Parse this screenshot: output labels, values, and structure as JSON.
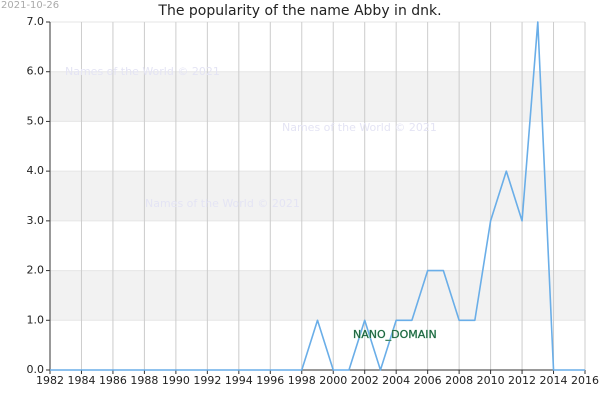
{
  "chart_data": {
    "type": "line",
    "title": "The popularity of the name Abby in dnk.",
    "x": [
      1982,
      1983,
      1984,
      1985,
      1986,
      1987,
      1988,
      1989,
      1990,
      1991,
      1992,
      1993,
      1994,
      1995,
      1996,
      1997,
      1998,
      1999,
      2000,
      2001,
      2002,
      2003,
      2004,
      2005,
      2006,
      2007,
      2008,
      2009,
      2010,
      2011,
      2012,
      2013,
      2014,
      2015,
      2016
    ],
    "values": [
      0,
      0,
      0,
      0,
      0,
      0,
      0,
      0,
      0,
      0,
      0,
      0,
      0,
      0,
      0,
      0,
      0,
      1,
      0,
      0,
      1,
      0,
      1,
      1,
      2,
      2,
      1,
      1,
      3,
      4,
      3,
      7,
      0,
      0,
      0
    ],
    "color": "#6aaee8",
    "xlim": [
      1982,
      2016
    ],
    "xticks": [
      1982,
      1984,
      1986,
      1988,
      1990,
      1992,
      1994,
      1996,
      1998,
      2000,
      2002,
      2004,
      2006,
      2008,
      2010,
      2012,
      2014,
      2016
    ],
    "ylim": [
      0,
      7
    ],
    "yticks": [
      {
        "value": 0,
        "label": "0.0"
      },
      {
        "value": 1,
        "label": "1.0"
      },
      {
        "value": 2,
        "label": "2.0"
      },
      {
        "value": 3,
        "label": "3.0"
      },
      {
        "value": 4,
        "label": "4.0"
      },
      {
        "value": 5,
        "label": "5.0"
      },
      {
        "value": 6,
        "label": "6.0"
      },
      {
        "value": 7,
        "label": "7.0"
      }
    ],
    "grid": true
  },
  "date_stamp": "2021-10-26",
  "watermarks": [
    "Names of the World © 2021",
    "Names of the World © 2021",
    "Names of the World © 2021"
  ],
  "domain_label": "NANO_DOMAIN"
}
